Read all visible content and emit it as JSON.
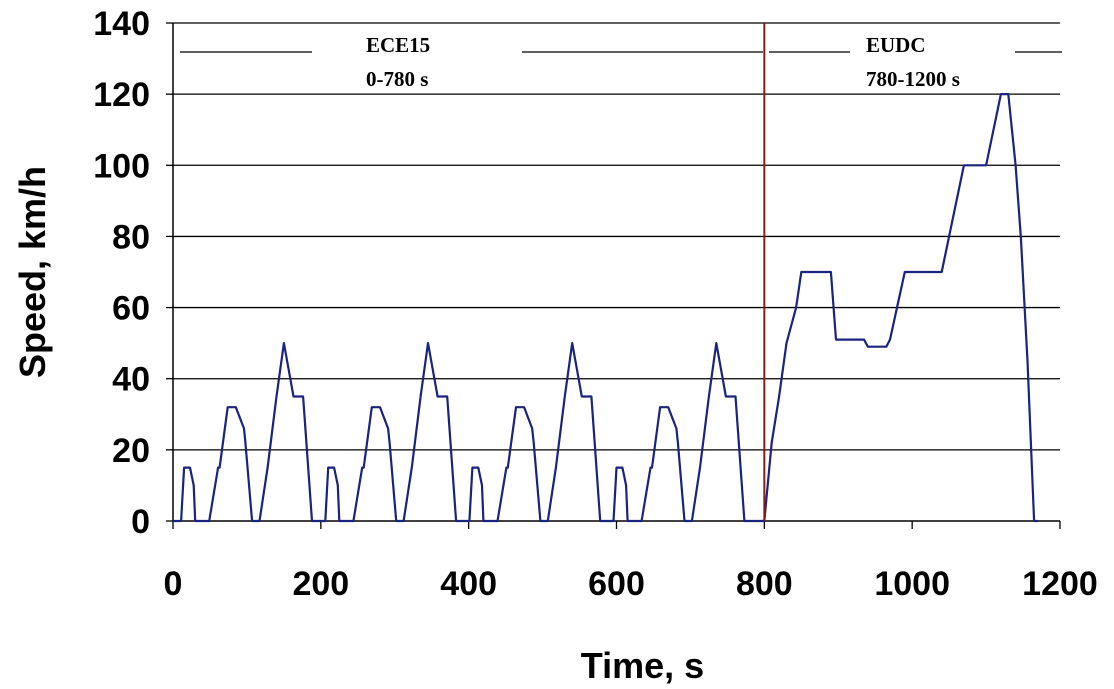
{
  "chart_data": {
    "type": "line",
    "title": "",
    "xlabel": "Time, s",
    "ylabel": "Speed, km/h",
    "xlim": [
      0,
      1200
    ],
    "ylim": [
      0,
      140
    ],
    "xticks": [
      0,
      200,
      400,
      600,
      800,
      1000,
      1200
    ],
    "yticks": [
      0,
      20,
      40,
      60,
      80,
      100,
      120,
      140
    ],
    "grid": "horizontal",
    "legend": "none",
    "colors": {
      "series": "#1a237e",
      "divider": "#8b1a1a",
      "grid": "#000000"
    },
    "divider_x": 800,
    "annotations": [
      {
        "id": "ece",
        "line1": "ECE15",
        "line2": "0-780 s"
      },
      {
        "id": "eudc",
        "line1": "EUDC",
        "line2": "780-1200 s"
      }
    ],
    "series": [
      {
        "points": [
          [
            0,
            0
          ],
          [
            11,
            0
          ],
          [
            15,
            15
          ],
          [
            23,
            15
          ],
          [
            28,
            10
          ],
          [
            30,
            0
          ],
          [
            49,
            0
          ],
          [
            61,
            15
          ],
          [
            63,
            15
          ],
          [
            74,
            32
          ],
          [
            85,
            32
          ],
          [
            96,
            26
          ],
          [
            98,
            22
          ],
          [
            107,
            0
          ],
          [
            117,
            0
          ],
          [
            128,
            15
          ],
          [
            140,
            35
          ],
          [
            150,
            50
          ],
          [
            163,
            35
          ],
          [
            168,
            35
          ],
          [
            176,
            35
          ],
          [
            188,
            0
          ],
          [
            206,
            0
          ],
          [
            210,
            15
          ],
          [
            218,
            15
          ],
          [
            223,
            10
          ],
          [
            225,
            0
          ],
          [
            244,
            0
          ],
          [
            256,
            15
          ],
          [
            258,
            15
          ],
          [
            269,
            32
          ],
          [
            280,
            32
          ],
          [
            291,
            26
          ],
          [
            293,
            22
          ],
          [
            302,
            0
          ],
          [
            312,
            0
          ],
          [
            323,
            15
          ],
          [
            335,
            35
          ],
          [
            345,
            50
          ],
          [
            358,
            35
          ],
          [
            363,
            35
          ],
          [
            371,
            35
          ],
          [
            383,
            0
          ],
          [
            401,
            0
          ],
          [
            405,
            15
          ],
          [
            413,
            15
          ],
          [
            418,
            10
          ],
          [
            420,
            0
          ],
          [
            439,
            0
          ],
          [
            451,
            15
          ],
          [
            453,
            15
          ],
          [
            464,
            32
          ],
          [
            475,
            32
          ],
          [
            486,
            26
          ],
          [
            488,
            22
          ],
          [
            497,
            0
          ],
          [
            507,
            0
          ],
          [
            518,
            15
          ],
          [
            530,
            35
          ],
          [
            540,
            50
          ],
          [
            553,
            35
          ],
          [
            558,
            35
          ],
          [
            566,
            35
          ],
          [
            578,
            0
          ],
          [
            596,
            0
          ],
          [
            600,
            15
          ],
          [
            608,
            15
          ],
          [
            613,
            10
          ],
          [
            615,
            0
          ],
          [
            634,
            0
          ],
          [
            646,
            15
          ],
          [
            648,
            15
          ],
          [
            659,
            32
          ],
          [
            670,
            32
          ],
          [
            681,
            26
          ],
          [
            683,
            22
          ],
          [
            692,
            0
          ],
          [
            702,
            0
          ],
          [
            713,
            15
          ],
          [
            725,
            35
          ],
          [
            735,
            50
          ],
          [
            748,
            35
          ],
          [
            753,
            35
          ],
          [
            761,
            35
          ],
          [
            773,
            0
          ],
          [
            800,
            0
          ],
          [
            810,
            22
          ],
          [
            820,
            35
          ],
          [
            830,
            50
          ],
          [
            843,
            60
          ],
          [
            850,
            70
          ],
          [
            890,
            70
          ],
          [
            897,
            51
          ],
          [
            935,
            51
          ],
          [
            940,
            49
          ],
          [
            965,
            49
          ],
          [
            970,
            51
          ],
          [
            990,
            70
          ],
          [
            1040,
            70
          ],
          [
            1055,
            85
          ],
          [
            1070,
            100
          ],
          [
            1100,
            100
          ],
          [
            1120,
            120
          ],
          [
            1130,
            120
          ],
          [
            1140,
            100
          ],
          [
            1147,
            80
          ],
          [
            1156,
            45
          ],
          [
            1165,
            0
          ],
          [
            1170,
            0
          ]
        ]
      }
    ]
  }
}
